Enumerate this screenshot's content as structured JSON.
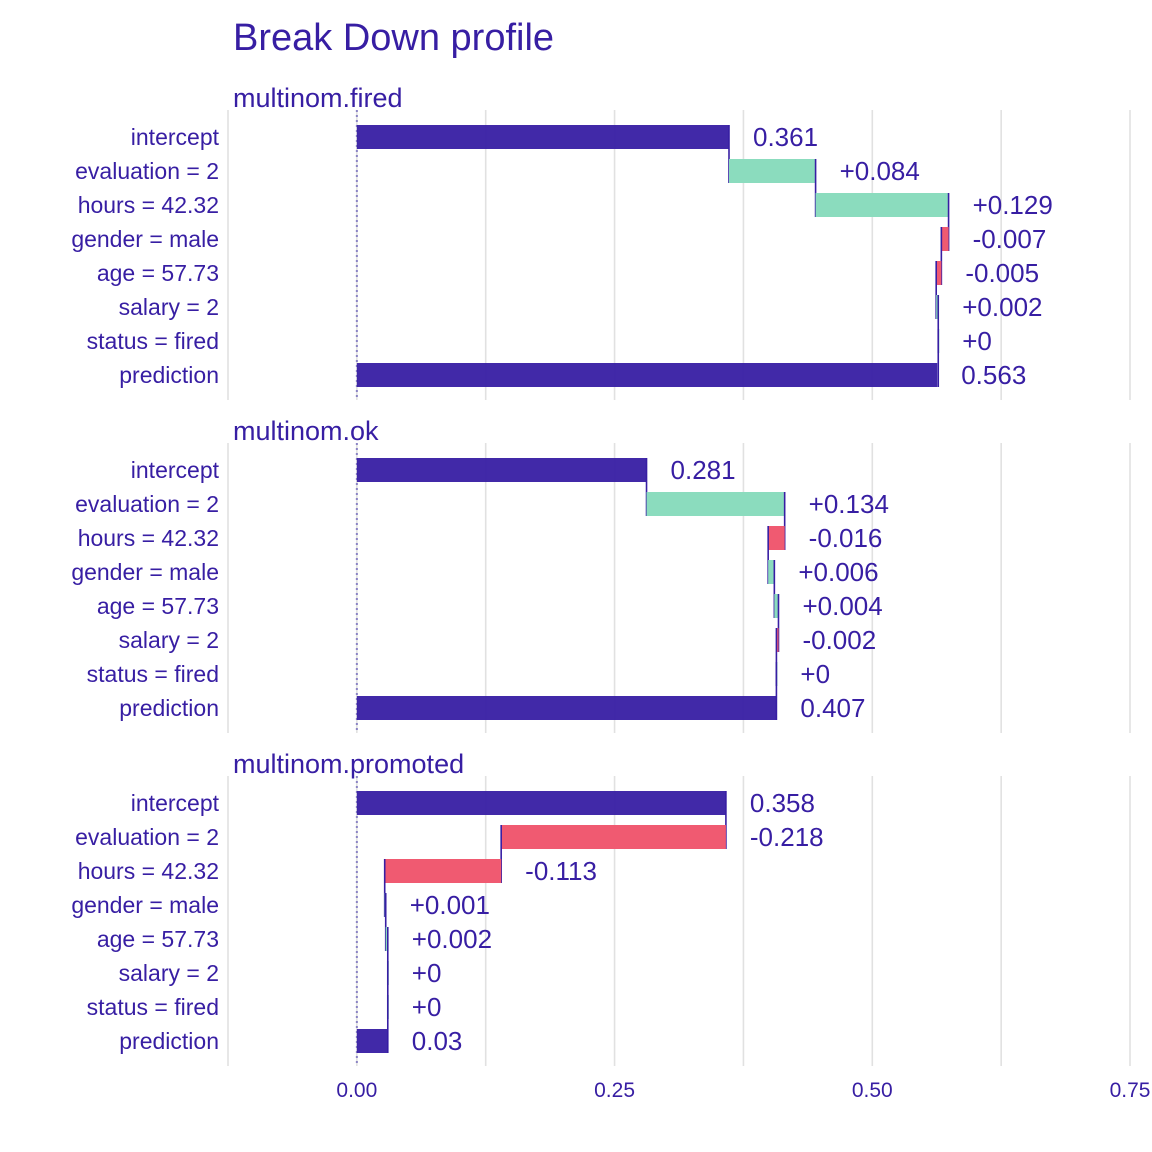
{
  "chart_data": {
    "type": "bar",
    "title": "Break Down profile",
    "x_ticks": [
      "0.00",
      "0.25",
      "0.50",
      "0.75"
    ],
    "x_tick_values": [
      0,
      0.25,
      0.5,
      0.75
    ],
    "xlim": [
      -0.125,
      0.75
    ],
    "grid": true,
    "colors": {
      "text": "#371ea3",
      "baseline": "#371ea3",
      "positive": "#8bdcbe",
      "negative": "#f05a71",
      "grid": "#e1e1e1"
    },
    "panels": [
      {
        "name": "multinom.fired",
        "intercept": 0.361,
        "prediction": 0.563,
        "rows": [
          {
            "variable": "intercept",
            "contribution": 0.361,
            "label": "0.361"
          },
          {
            "variable": "evaluation = 2",
            "contribution": 0.084,
            "label": "+0.084"
          },
          {
            "variable": "hours = 42.32",
            "contribution": 0.129,
            "label": "+0.129"
          },
          {
            "variable": "gender = male",
            "contribution": -0.007,
            "label": "-0.007"
          },
          {
            "variable": "age = 57.73",
            "contribution": -0.005,
            "label": "-0.005"
          },
          {
            "variable": "salary = 2",
            "contribution": 0.002,
            "label": "+0.002"
          },
          {
            "variable": "status = fired",
            "contribution": 0,
            "label": "+0"
          },
          {
            "variable": "prediction",
            "contribution": 0.563,
            "label": "0.563"
          }
        ]
      },
      {
        "name": "multinom.ok",
        "intercept": 0.281,
        "prediction": 0.407,
        "rows": [
          {
            "variable": "intercept",
            "contribution": 0.281,
            "label": "0.281"
          },
          {
            "variable": "evaluation = 2",
            "contribution": 0.134,
            "label": "+0.134"
          },
          {
            "variable": "hours = 42.32",
            "contribution": -0.016,
            "label": "-0.016"
          },
          {
            "variable": "gender = male",
            "contribution": 0.006,
            "label": "+0.006"
          },
          {
            "variable": "age = 57.73",
            "contribution": 0.004,
            "label": "+0.004"
          },
          {
            "variable": "salary = 2",
            "contribution": -0.002,
            "label": "-0.002"
          },
          {
            "variable": "status = fired",
            "contribution": 0,
            "label": "+0"
          },
          {
            "variable": "prediction",
            "contribution": 0.407,
            "label": "0.407"
          }
        ]
      },
      {
        "name": "multinom.promoted",
        "intercept": 0.358,
        "prediction": 0.03,
        "rows": [
          {
            "variable": "intercept",
            "contribution": 0.358,
            "label": "0.358"
          },
          {
            "variable": "evaluation = 2",
            "contribution": -0.218,
            "label": "-0.218"
          },
          {
            "variable": "hours = 42.32",
            "contribution": -0.113,
            "label": "-0.113"
          },
          {
            "variable": "gender = male",
            "contribution": 0.001,
            "label": "+0.001"
          },
          {
            "variable": "age = 57.73",
            "contribution": 0.002,
            "label": "+0.002"
          },
          {
            "variable": "salary = 2",
            "contribution": 0,
            "label": "+0"
          },
          {
            "variable": "status = fired",
            "contribution": 0,
            "label": "+0"
          },
          {
            "variable": "prediction",
            "contribution": 0.03,
            "label": "0.03"
          }
        ]
      }
    ]
  }
}
